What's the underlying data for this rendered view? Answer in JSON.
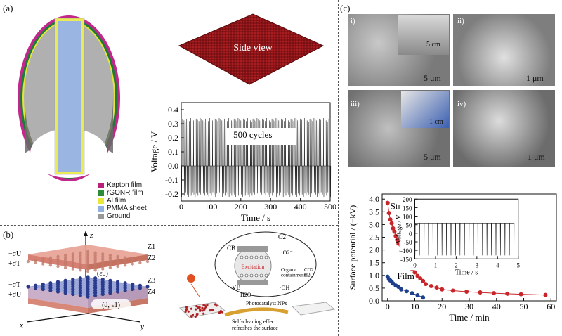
{
  "panel_a": {
    "label": "(a)",
    "side_view_label": "Side view",
    "legend": [
      {
        "name": "Kapton film",
        "color": "#b8207a"
      },
      {
        "name": "rGONR film",
        "color": "#2e8b3a"
      },
      {
        "name": "Al film",
        "color": "#e8e83a"
      },
      {
        "name": "PMMA sheet",
        "color": "#8fb0e0"
      },
      {
        "name": "Ground",
        "color": "#999999"
      }
    ],
    "chart_annotation": "500 cycles"
  },
  "panel_b": {
    "label": "(b)",
    "axis_z": "z",
    "axis_x": "x",
    "axis_y": "y",
    "sigma_labels": [
      "−σU",
      "+σT",
      "−σT",
      "+σU"
    ],
    "z_labels": [
      "Z1",
      "Z2",
      "Z3",
      "Z4"
    ],
    "gap_label": "(ε0)",
    "layer_label": "(d, ε1)",
    "photo": {
      "cb": "CB",
      "vb": "VB",
      "o2": "O2",
      "superoxide": "·O2⁻",
      "excitation": "Excitation",
      "organic": "Organic\ncontainment",
      "products": "CO2\nH2O",
      "h2o": "H2O",
      "oh": "·OH",
      "np_label": "Photocatalyst NPs",
      "caption": "Self-cleaning effect\nrefreshes the surface"
    }
  },
  "panel_c": {
    "label": "(c)",
    "sem": [
      {
        "label": "i)",
        "scale": "5 μm",
        "inset_scale": "5 cm"
      },
      {
        "label": "ii)",
        "scale": "1 μm"
      },
      {
        "label": "iii)",
        "scale": "5 μm",
        "inset_scale": "1 cm"
      },
      {
        "label": "iv)",
        "scale": "1 μm"
      }
    ],
    "curve_labels": {
      "structures": "Structures",
      "film": "Film"
    }
  },
  "chart_data": [
    {
      "type": "line",
      "xlabel": "Time / s",
      "ylabel": "Voltage / V",
      "xlim": [
        0,
        500
      ],
      "ylim": [
        -0.25,
        0.45
      ],
      "xticks": [
        "0",
        "100",
        "200",
        "300",
        "400",
        "500"
      ],
      "yticks": [
        "-0.2",
        "-0.1",
        "0.0",
        "0.1",
        "0.2",
        "0.3",
        "0.4"
      ],
      "cycles": 500,
      "peak_max": 0.34,
      "peak_min": -0.22,
      "annotation": "500 cycles"
    },
    {
      "type": "scatter",
      "xlabel": "Time / min",
      "ylabel": "Surface potential / (−kV)",
      "xlim": [
        -2,
        62
      ],
      "ylim": [
        0,
        4.2
      ],
      "xticks": [
        "0",
        "10",
        "20",
        "30",
        "40",
        "50",
        "60"
      ],
      "yticks": [
        "0.0",
        "0.5",
        "1.0",
        "1.5",
        "2.0",
        "2.5",
        "3.0",
        "3.5",
        "4.0"
      ],
      "series": [
        {
          "name": "Structures",
          "color": "#c8262a",
          "x": [
            0,
            0.5,
            1,
            1.5,
            2,
            2.5,
            3,
            3.5,
            4,
            5,
            6,
            7,
            8,
            9,
            10,
            11,
            12,
            13,
            14,
            16,
            18,
            20,
            24,
            29,
            34,
            39,
            44,
            49,
            58
          ],
          "y": [
            3.85,
            3.45,
            3.2,
            3.05,
            2.85,
            2.72,
            2.55,
            2.4,
            2.25,
            1.95,
            1.75,
            1.58,
            1.4,
            1.25,
            1.12,
            0.98,
            0.88,
            0.78,
            0.66,
            0.58,
            0.52,
            0.45,
            0.4,
            0.36,
            0.33,
            0.3,
            0.28,
            0.26,
            0.23
          ]
        },
        {
          "name": "Film",
          "color": "#1e3f8e",
          "x": [
            0,
            0.5,
            1,
            1.5,
            2,
            3,
            4,
            5,
            7,
            9,
            11,
            13
          ],
          "y": [
            0.95,
            0.85,
            0.8,
            0.75,
            0.68,
            0.6,
            0.55,
            0.45,
            0.38,
            0.3,
            0.22,
            0.13
          ]
        }
      ]
    },
    {
      "type": "line",
      "xlabel": "Time / s",
      "ylabel": "Voltage / V",
      "xlim": [
        0,
        5
      ],
      "ylim": [
        -150,
        200
      ],
      "xticks": [
        "0",
        "1",
        "2",
        "3",
        "4",
        "5"
      ],
      "yticks": [
        "-150",
        "-100",
        "-50",
        "0",
        "50",
        "100",
        "150",
        "200"
      ],
      "peak_max": 60,
      "peak_min": -130,
      "peaks_per_second": 4.6
    }
  ]
}
